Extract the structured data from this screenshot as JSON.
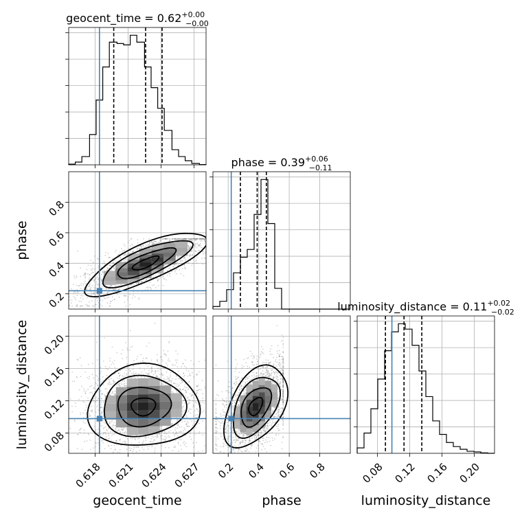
{
  "chart_data": {
    "type": "corner",
    "parameters": [
      "geocent_time",
      "phase",
      "luminosity_distance"
    ],
    "truths": {
      "geocent_time": 0.6184,
      "phase": 0.22,
      "luminosity_distance": 0.098
    },
    "titles": {
      "geocent_time": {
        "name": "geocent_time",
        "median": "0.62",
        "plus": "+0.00",
        "minus": "−0.00"
      },
      "phase": {
        "name": "phase",
        "median": "0.39",
        "plus": "+0.06",
        "minus": "−0.11"
      },
      "luminosity_distance": {
        "name": "luminosity_distance",
        "median": "0.11",
        "plus": "+0.02",
        "minus": "−0.02"
      }
    },
    "ranges": {
      "geocent_time": [
        0.6156,
        0.6281
      ],
      "phase": [
        0.1,
        1.0
      ],
      "luminosity_distance": [
        0.055,
        0.225
      ]
    },
    "ticks": {
      "geocent_time": [
        {
          "v": 0.618,
          "label": "0.618"
        },
        {
          "v": 0.621,
          "label": "0.621"
        },
        {
          "v": 0.624,
          "label": "0.624"
        },
        {
          "v": 0.627,
          "label": "0.627"
        }
      ],
      "phase": [
        {
          "v": 0.2,
          "label": "0.2"
        },
        {
          "v": 0.4,
          "label": "0.4"
        },
        {
          "v": 0.6,
          "label": "0.6"
        },
        {
          "v": 0.8,
          "label": "0.8"
        }
      ],
      "luminosity_distance": [
        {
          "v": 0.08,
          "label": "0.08"
        },
        {
          "v": 0.12,
          "label": "0.12"
        },
        {
          "v": 0.16,
          "label": "0.16"
        },
        {
          "v": 0.2,
          "label": "0.20"
        }
      ]
    },
    "quantiles": {
      "geocent_time": [
        0.6197,
        0.6226,
        0.6241
      ],
      "phase": [
        0.28,
        0.39,
        0.45
      ],
      "luminosity_distance": [
        0.09,
        0.113,
        0.135
      ]
    },
    "histograms": {
      "geocent_time": {
        "edges": [
          0.6156,
          0.6162,
          0.6168,
          0.6175,
          0.6181,
          0.6187,
          0.6193,
          0.62,
          0.6206,
          0.6212,
          0.6218,
          0.6225,
          0.6231,
          0.6237,
          0.6243,
          0.625,
          0.6256,
          0.6262,
          0.6268,
          0.6275,
          0.6281
        ],
        "counts": [
          0.5,
          2,
          6,
          22,
          47,
          71,
          89,
          88,
          87,
          94,
          89,
          71,
          56,
          41,
          25,
          11,
          6,
          3,
          1,
          0.2
        ]
      },
      "phase": {
        "edges": [
          0.1,
          0.145,
          0.19,
          0.235,
          0.28,
          0.325,
          0.37,
          0.415,
          0.46,
          0.505,
          0.55,
          0.595,
          0.64,
          0.685,
          0.73,
          0.775,
          0.82,
          0.865,
          0.91,
          0.955,
          1.0
        ],
        "counts": [
          2,
          6,
          15,
          28,
          40,
          46,
          73,
          100,
          66,
          16,
          0,
          0,
          0,
          0,
          0,
          0,
          0,
          0,
          0,
          0
        ]
      },
      "luminosity_distance": {
        "edges": [
          0.055,
          0.0635,
          0.072,
          0.0805,
          0.089,
          0.0975,
          0.106,
          0.1145,
          0.123,
          0.1315,
          0.14,
          0.1485,
          0.157,
          0.1655,
          0.174,
          0.1825,
          0.191,
          0.1995,
          0.208,
          0.2165,
          0.225
        ],
        "counts": [
          4,
          15,
          33,
          55,
          76,
          90,
          96,
          92,
          80,
          61,
          42,
          24,
          14,
          8,
          5,
          3,
          1.5,
          1,
          0.3,
          0
        ]
      }
    }
  }
}
